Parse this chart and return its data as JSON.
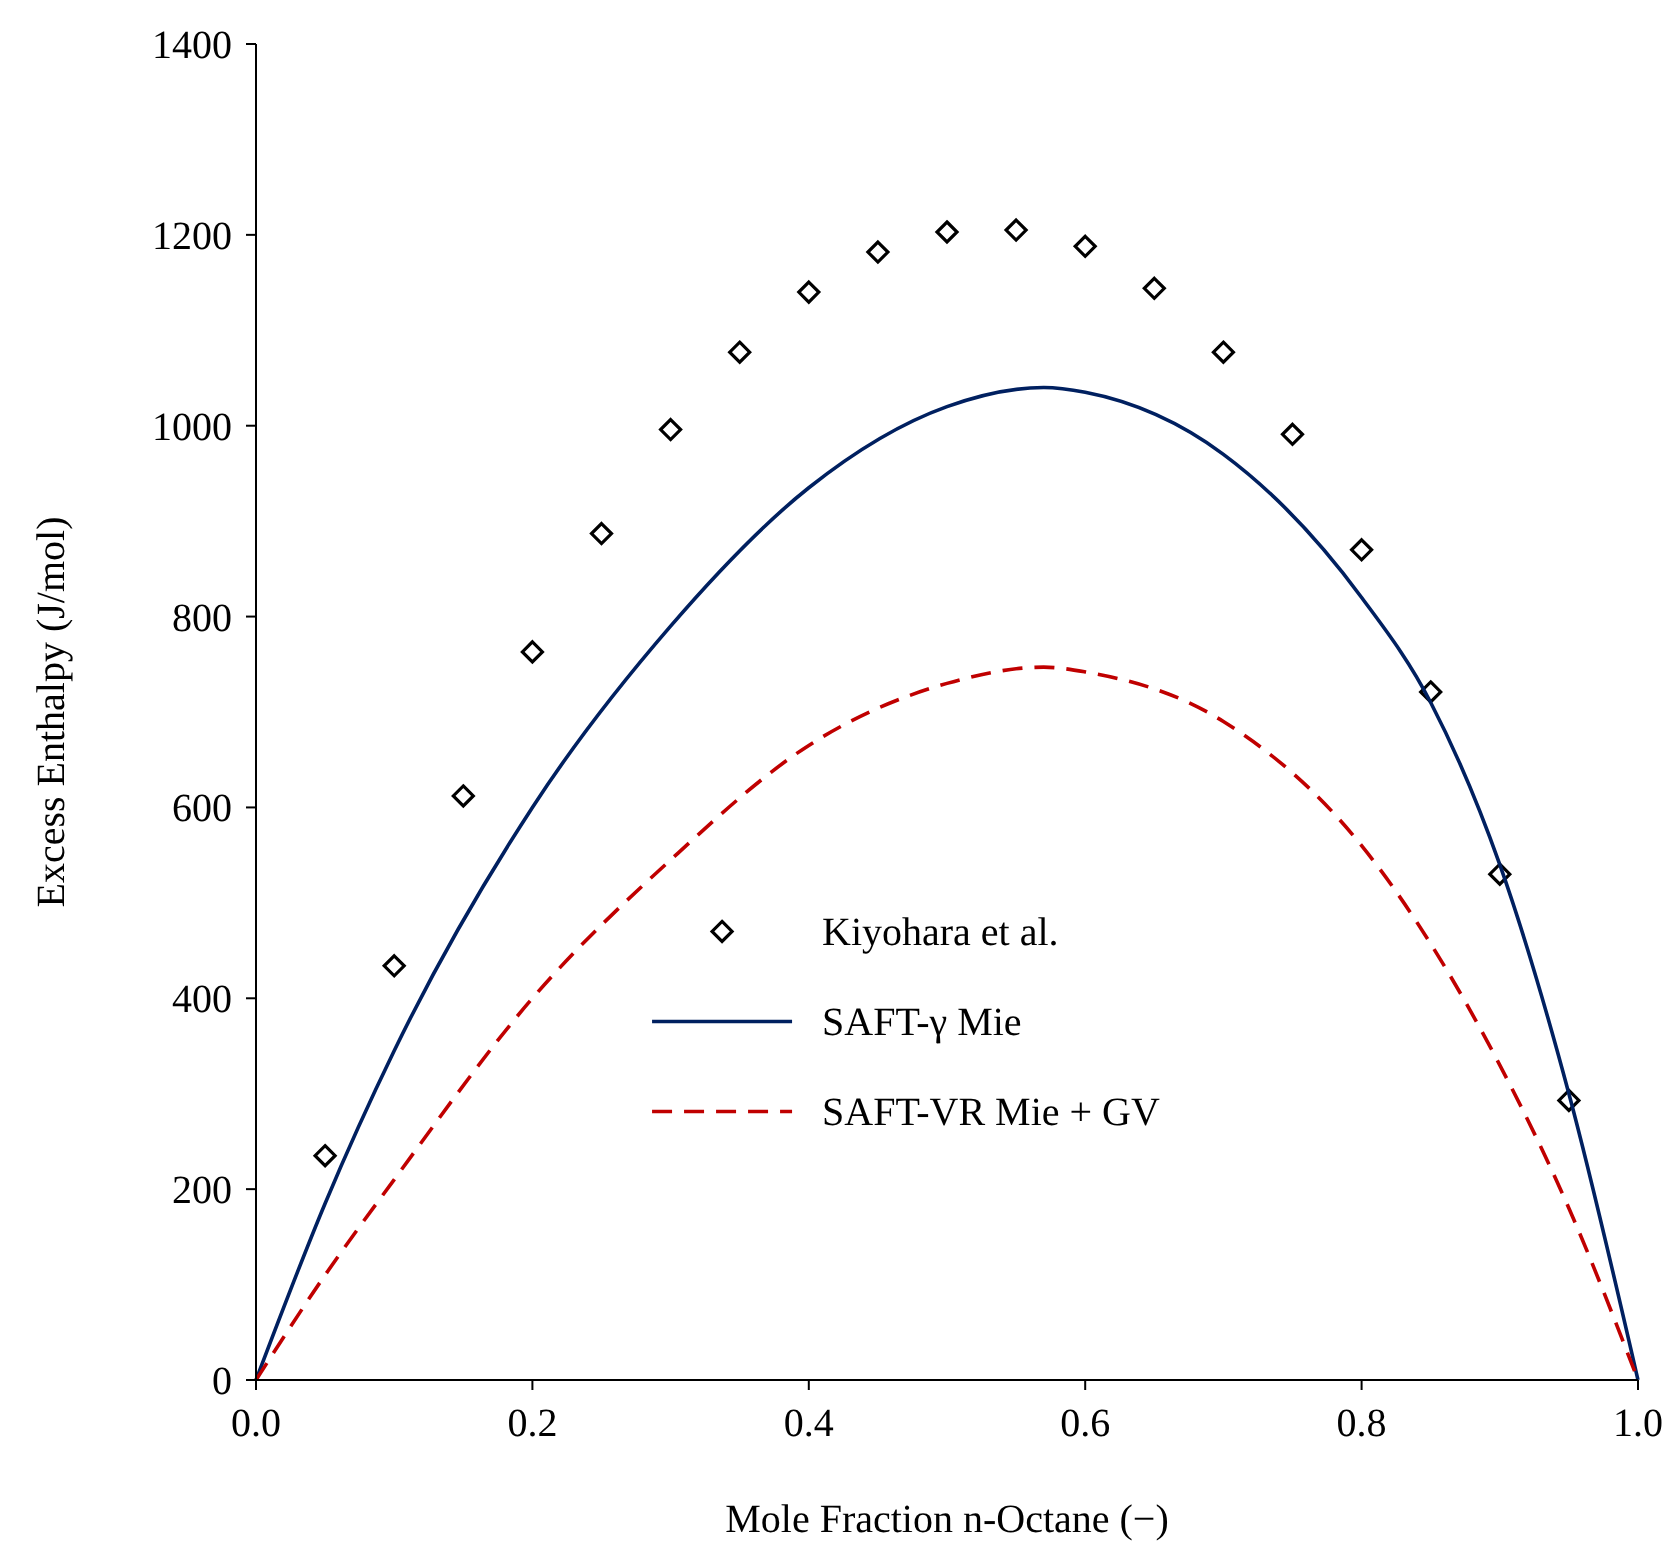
{
  "chart_data": {
    "type": "line",
    "xlabel": "Mole Fraction n-Octane (−)",
    "ylabel": "Excess Enthalpy (J/mol)",
    "xlim": [
      0,
      1
    ],
    "ylim": [
      0,
      1400
    ],
    "xticks": [
      {
        "value": 0,
        "label": "0.0"
      },
      0.2,
      0.4,
      0.6,
      0.8,
      {
        "value": 1,
        "label": "1.0"
      }
    ],
    "yticks": [
      0,
      200,
      400,
      600,
      800,
      1000,
      1200,
      1400
    ],
    "grid": false,
    "legend": "bottom",
    "series": [
      {
        "name": "Kiyohara et al.",
        "type": "scatter",
        "marker": "diamond",
        "color": "#000000",
        "x": [
          0.05,
          0.1,
          0.15,
          0.2,
          0.25,
          0.3,
          0.35,
          0.4,
          0.45,
          0.5,
          0.55,
          0.6,
          0.65,
          0.7,
          0.75,
          0.8,
          0.85,
          0.9,
          0.95
        ],
        "values": [
          235,
          434,
          612,
          763,
          887,
          996,
          1077,
          1140,
          1182,
          1203,
          1205,
          1188,
          1144,
          1077,
          991,
          870,
          721,
          530,
          293
        ]
      },
      {
        "name": "SAFT-γ Mie",
        "type": "line",
        "marker": "none",
        "line_style": "solid",
        "color": "#002060",
        "x": [
          0,
          0.05,
          0.1,
          0.2,
          0.3,
          0.4,
          0.5,
          0.57,
          0.6,
          0.7,
          0.8,
          0.85,
          0.9,
          0.95,
          1
        ],
        "values": [
          0,
          185,
          345,
          600,
          790,
          935,
          1020,
          1040,
          1035,
          970,
          820,
          710,
          540,
          300,
          0
        ]
      },
      {
        "name": "SAFT-VR Mie + GV",
        "type": "line",
        "marker": "none",
        "line_style": "dashed",
        "color": "#c00000",
        "x": [
          0,
          0.05,
          0.1,
          0.2,
          0.3,
          0.4,
          0.5,
          0.57,
          0.6,
          0.7,
          0.8,
          0.9,
          0.95,
          1
        ],
        "values": [
          0,
          110,
          210,
          400,
          545,
          665,
          730,
          747,
          742,
          690,
          560,
          330,
          180,
          0
        ]
      }
    ]
  }
}
